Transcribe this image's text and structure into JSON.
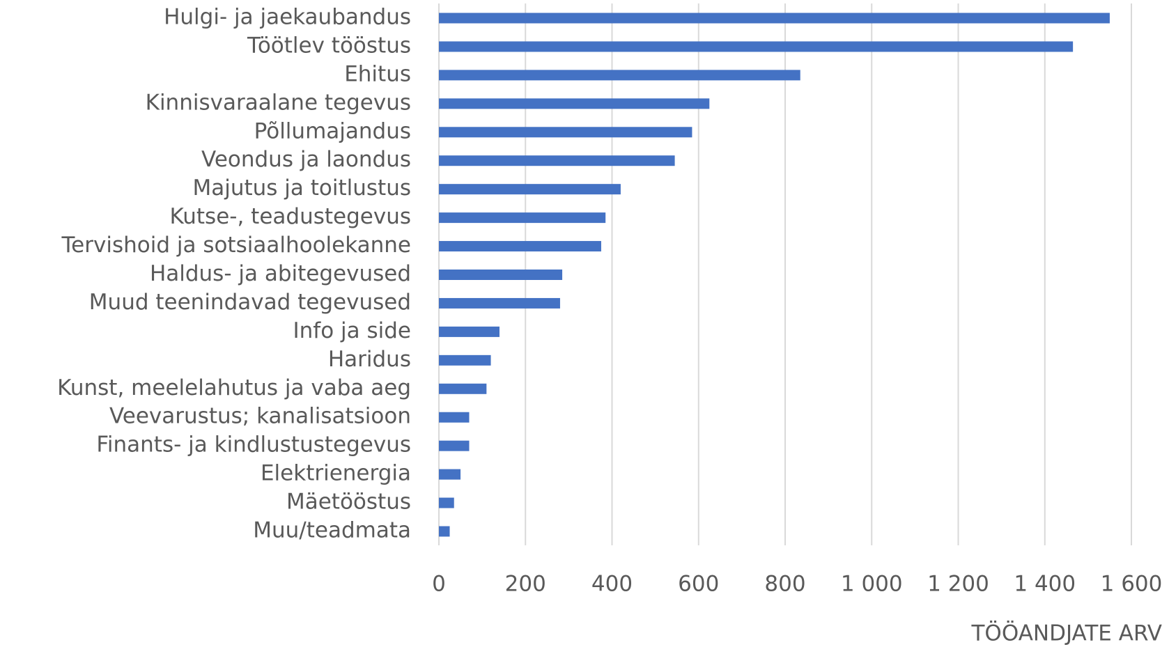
{
  "chart_data": {
    "type": "bar",
    "orientation": "horizontal",
    "x_label": "TÖÖANDJATE ARV",
    "categories": [
      "Hulgi- ja jaekaubandus",
      "Töötlev tööstus",
      "Ehitus",
      "Kinnisvaraalane tegevus",
      "Põllumajandus",
      "Veondus ja laondus",
      "Majutus ja toitlustus",
      "Kutse-, teadustegevus",
      "Tervishoid ja sotsiaalhoolekanne",
      "Haldus- ja abitegevused",
      "Muud teenindavad tegevused",
      "Info ja side",
      "Haridus",
      "Kunst, meelelahutus ja vaba aeg",
      "Veevarustus; kanalisatsioon",
      "Finants- ja kindlustustegevus",
      "Elektrienergia",
      "Mäetööstus",
      "Muu/teadmata"
    ],
    "values": [
      1550,
      1465,
      835,
      625,
      585,
      545,
      420,
      385,
      375,
      285,
      280,
      140,
      120,
      110,
      70,
      70,
      50,
      35,
      25
    ],
    "color": "#4472c4",
    "xlim": [
      0,
      1600
    ],
    "xticks": [
      0,
      200,
      400,
      600,
      800,
      {
        "value": 1000,
        "label": "1 000"
      },
      {
        "value": 1200,
        "label": "1 200"
      },
      {
        "value": 1400,
        "label": "1 400"
      },
      {
        "value": 1600,
        "label": "1 600"
      }
    ],
    "grid": true
  }
}
